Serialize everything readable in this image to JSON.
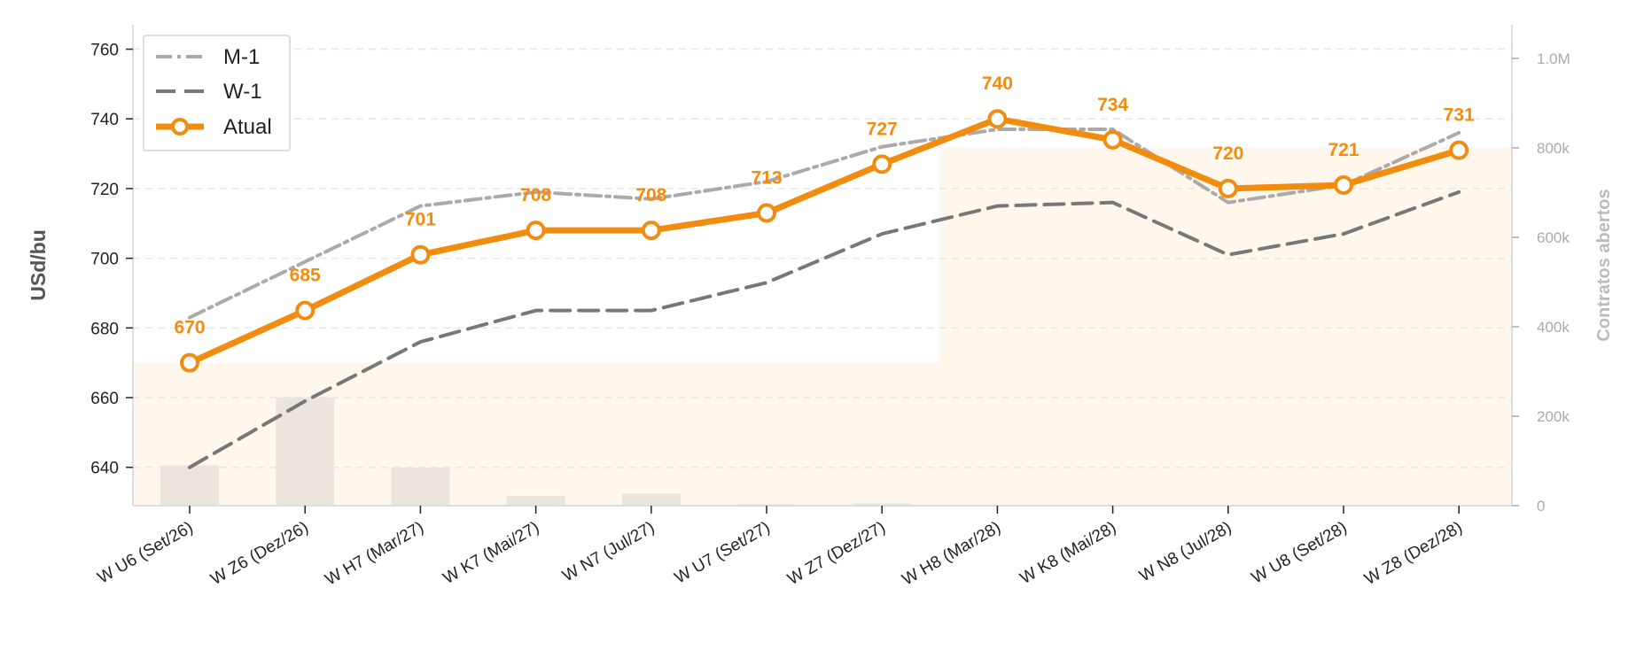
{
  "chart_data": {
    "type": "line",
    "categories": [
      "W U6 (Set/26)",
      "W Z6 (Dez/26)",
      "W H7 (Mar/27)",
      "W K7 (Mai/27)",
      "W N7 (Jul/27)",
      "W U7 (Set/27)",
      "W Z7 (Dez/27)",
      "W H8 (Mar/28)",
      "W K8 (Mai/28)",
      "W N8 (Jul/28)",
      "W U8 (Set/28)",
      "W Z8 (Dez/28)"
    ],
    "ylabel": "USd/bu",
    "y2label": "Contratos abertos",
    "ylim": [
      629,
      767
    ],
    "yticks": [
      640,
      660,
      680,
      700,
      720,
      740,
      760
    ],
    "y2lim": [
      0,
      1075000
    ],
    "y2ticks": [
      0,
      200000,
      400000,
      600000,
      800000,
      1000000
    ],
    "y2ticklabels": [
      "0",
      "200k",
      "400k",
      "600k",
      "800k",
      "1.0M"
    ],
    "series": [
      {
        "name": "M-1",
        "style": "dashdot",
        "color": "#aaaaaa",
        "values": [
          683,
          699,
          715,
          719,
          717,
          722,
          732,
          737,
          737,
          716,
          721,
          736
        ]
      },
      {
        "name": "W-1",
        "style": "dashed",
        "color": "#777777",
        "values": [
          640,
          659,
          676,
          685,
          685,
          693,
          707,
          715,
          716,
          701,
          707,
          719
        ]
      },
      {
        "name": "Atual",
        "style": "solid-markers",
        "color": "#f28c0f",
        "values": [
          670,
          685,
          701,
          708,
          708,
          713,
          727,
          740,
          734,
          720,
          721,
          731
        ],
        "data_labels": [
          "670",
          "685",
          "701",
          "708",
          "708",
          "713",
          "727",
          "740",
          "734",
          "720",
          "721",
          "731"
        ]
      }
    ],
    "bars": {
      "name": "Contratos abertos",
      "color": "#ebe5de",
      "axis": "right",
      "values": [
        90000,
        242000,
        85000,
        22000,
        27000,
        3000,
        5000,
        0,
        0,
        0,
        0,
        0
      ]
    },
    "area": {
      "color": "#fff7ec",
      "axis": "right",
      "values": [
        320000,
        320000,
        320000,
        320000,
        320000,
        320000,
        320000,
        800000,
        800000,
        800000,
        800000,
        800000
      ]
    },
    "grid": true,
    "legend": "top-left"
  }
}
